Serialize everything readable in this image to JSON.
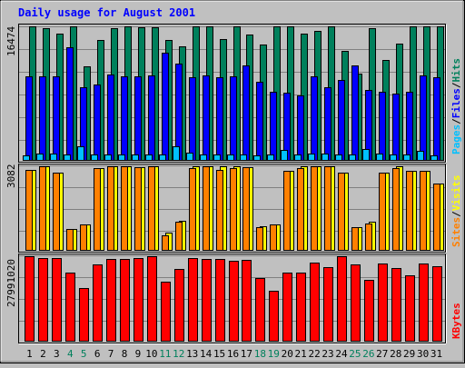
{
  "chart_data": [
    {
      "type": "bar",
      "title": "Daily usage for August 2001",
      "max_label": "16474",
      "legend": [
        "Pages",
        "Files",
        "Hits"
      ],
      "categories": [
        "1",
        "2",
        "3",
        "4",
        "5",
        "6",
        "7",
        "8",
        "9",
        "10",
        "11",
        "12",
        "13",
        "14",
        "15",
        "16",
        "17",
        "18",
        "19",
        "20",
        "21",
        "22",
        "23",
        "24",
        "25",
        "26",
        "27",
        "28",
        "29",
        "30",
        "31"
      ],
      "weekend_days": [
        "4",
        "5",
        "11",
        "12",
        "18",
        "19",
        "25",
        "26"
      ],
      "ylim": [
        0,
        16474
      ],
      "series": [
        {
          "name": "Hits",
          "color": "#00805c",
          "values": [
            16474,
            16300,
            15600,
            16474,
            11600,
            14800,
            16300,
            16474,
            16350,
            16350,
            14800,
            14000,
            16474,
            16474,
            14900,
            16474,
            15500,
            14200,
            16474,
            16420,
            15600,
            15900,
            16474,
            13500,
            10700,
            16300,
            12300,
            14400,
            16474,
            16474,
            16474
          ]
        },
        {
          "name": "Files",
          "color": "#0000ff",
          "values": [
            10400,
            10400,
            10400,
            13900,
            9000,
            9300,
            10600,
            10300,
            10400,
            10500,
            13200,
            11900,
            10200,
            10500,
            10200,
            10300,
            11700,
            9700,
            8500,
            8400,
            8000,
            10300,
            9000,
            9900,
            11700,
            8700,
            8500,
            8200,
            8500,
            10500,
            10200
          ]
        },
        {
          "name": "Pages",
          "color": "#00c0ff",
          "values": [
            700,
            900,
            900,
            800,
            1800,
            800,
            800,
            800,
            800,
            800,
            800,
            1800,
            1000,
            800,
            800,
            800,
            800,
            700,
            800,
            1300,
            800,
            900,
            900,
            800,
            800,
            1400,
            900,
            800,
            800,
            1200,
            700
          ]
        }
      ]
    },
    {
      "type": "bar",
      "max_label": "3082",
      "legend": [
        "Sites",
        "Visits"
      ],
      "categories": [
        "1",
        "2",
        "3",
        "4",
        "5",
        "6",
        "7",
        "8",
        "9",
        "10",
        "11",
        "12",
        "13",
        "14",
        "15",
        "16",
        "17",
        "18",
        "19",
        "20",
        "21",
        "22",
        "23",
        "24",
        "25",
        "26",
        "27",
        "28",
        "29",
        "30",
        "31"
      ],
      "ylim": [
        0,
        3082
      ],
      "series": [
        {
          "name": "Visits",
          "color": "#ffff00",
          "values": [
            2950,
            3082,
            2850,
            800,
            950,
            3000,
            3082,
            3082,
            3050,
            3082,
            650,
            1100,
            3082,
            3082,
            3082,
            3082,
            3050,
            900,
            950,
            2900,
            3082,
            3082,
            3082,
            2850,
            850,
            1050,
            2850,
            3082,
            2900,
            2900,
            2450
          ]
        },
        {
          "name": "Sites",
          "color": "#ff8000",
          "values": [
            2950,
            3082,
            2850,
            800,
            950,
            3000,
            3082,
            3082,
            3050,
            3082,
            550,
            1050,
            3000,
            3082,
            2950,
            3000,
            3050,
            850,
            950,
            2900,
            3000,
            3082,
            3082,
            2850,
            850,
            1000,
            2850,
            3000,
            2900,
            2900,
            2450
          ]
        }
      ]
    },
    {
      "type": "bar",
      "max_label": "27991020",
      "legend": [
        "KBytes"
      ],
      "categories": [
        "1",
        "2",
        "3",
        "4",
        "5",
        "6",
        "7",
        "8",
        "9",
        "10",
        "11",
        "12",
        "13",
        "14",
        "15",
        "16",
        "17",
        "18",
        "19",
        "20",
        "21",
        "22",
        "23",
        "24",
        "25",
        "26",
        "27",
        "28",
        "29",
        "30",
        "31"
      ],
      "ylim": [
        0,
        27991020
      ],
      "series": [
        {
          "name": "KBytes",
          "color": "#ff0000",
          "values": [
            27900000,
            27500000,
            27500000,
            22600000,
            17700000,
            25200000,
            27200000,
            27200000,
            27300000,
            27991020,
            19800000,
            23800000,
            27500000,
            27200000,
            27200000,
            26600000,
            26900000,
            20800000,
            16700000,
            22500000,
            22500000,
            25800000,
            24500000,
            27991020,
            25200000,
            20200000,
            25600000,
            24000000,
            21800000,
            25500000,
            24600000
          ]
        }
      ]
    }
  ]
}
